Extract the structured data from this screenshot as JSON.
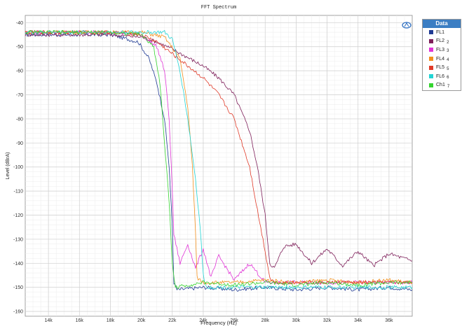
{
  "chart_data": {
    "type": "line",
    "title": "FFT Spectrum",
    "xlabel": "Frequency (Hz)",
    "ylabel": "Level (dBrA)",
    "xlim": [
      12500,
      37500
    ],
    "ylim": [
      -162,
      -37
    ],
    "x_ticks": [
      14000,
      16000,
      18000,
      20000,
      22000,
      24000,
      26000,
      28000,
      30000,
      32000,
      34000,
      36000
    ],
    "x_tick_labels": [
      "14k",
      "16k",
      "18k",
      "20k",
      "22k",
      "24k",
      "26k",
      "28k",
      "30k",
      "32k",
      "34k",
      "36k"
    ],
    "y_ticks": [
      -40,
      -50,
      -60,
      -70,
      -80,
      -90,
      -100,
      -110,
      -120,
      -130,
      -140,
      -150,
      -160
    ],
    "y_tick_labels": [
      "-40",
      "-50",
      "-60",
      "-70",
      "-80",
      "-90",
      "-100",
      "-110",
      "-120",
      "-130",
      "-140",
      "-150",
      "-160"
    ],
    "grid": true,
    "legend": {
      "title": "Data",
      "placement": "right"
    },
    "series": [
      {
        "name": "FL1",
        "number": "",
        "color": "#1f3a93",
        "x": [
          12500,
          15000,
          18000,
          19800,
          20500,
          21000,
          21500,
          21800,
          22000,
          22100,
          22300,
          24000,
          26000,
          28000,
          30000,
          32000,
          34000,
          36000,
          37500
        ],
        "y": [
          -45,
          -45,
          -45,
          -48,
          -55,
          -65,
          -80,
          -100,
          -125,
          -148,
          -151,
          -150,
          -151,
          -150,
          -151,
          -150,
          -151,
          -150,
          -151
        ]
      },
      {
        "name": "FL2",
        "number": "2",
        "color": "#7e1f5a",
        "x": [
          12500,
          15000,
          18000,
          20000,
          21000,
          22000,
          24000,
          25000,
          26000,
          27000,
          27500,
          28000,
          28300,
          28600,
          29200,
          30000,
          31000,
          32000,
          33000,
          34000,
          35000,
          36000,
          37500
        ],
        "y": [
          -45,
          -45,
          -45,
          -46,
          -48,
          -51,
          -58,
          -63,
          -70,
          -85,
          -100,
          -120,
          -140,
          -142,
          -133,
          -132,
          -140,
          -134,
          -141,
          -135,
          -141,
          -136,
          -139
        ]
      },
      {
        "name": "FL3",
        "number": "3",
        "color": "#e033d6",
        "x": [
          12500,
          15000,
          18000,
          20000,
          21000,
          21500,
          21800,
          22000,
          22100,
          22500,
          23000,
          23500,
          24000,
          24500,
          25000,
          26000,
          27000,
          28000,
          30000,
          32000,
          34000,
          36000,
          37500
        ],
        "y": [
          -44,
          -44,
          -44,
          -45,
          -50,
          -60,
          -80,
          -110,
          -128,
          -140,
          -132,
          -142,
          -134,
          -146,
          -137,
          -147,
          -140,
          -148,
          -148,
          -148,
          -148,
          -148,
          -148
        ]
      },
      {
        "name": "FL4",
        "number": "4",
        "color": "#f2901e",
        "x": [
          12500,
          15000,
          18000,
          20000,
          21500,
          22500,
          23000,
          23300,
          23500,
          23600,
          24000,
          26000,
          28000,
          30000,
          32000,
          34000,
          36000,
          37500
        ],
        "y": [
          -44,
          -44,
          -44,
          -44,
          -46,
          -55,
          -75,
          -100,
          -127,
          -146,
          -148,
          -148,
          -147,
          -148,
          -147,
          -148,
          -147,
          -148
        ]
      },
      {
        "name": "FL5",
        "number": "5",
        "color": "#e03a28",
        "x": [
          12500,
          15000,
          18000,
          20000,
          21000,
          22000,
          23000,
          24000,
          25000,
          26000,
          27000,
          27500,
          28000,
          28300,
          28600,
          30000,
          32000,
          34000,
          36000,
          37500
        ],
        "y": [
          -44,
          -44,
          -44,
          -45,
          -48,
          -53,
          -58,
          -63,
          -70,
          -80,
          -100,
          -118,
          -135,
          -146,
          -148,
          -148,
          -148,
          -148,
          -148,
          -148
        ]
      },
      {
        "name": "FL6",
        "number": "6",
        "color": "#22d4d4",
        "x": [
          12500,
          15000,
          18000,
          20000,
          21500,
          22000,
          22500,
          23000,
          23500,
          23800,
          24000,
          24200,
          26000,
          28000,
          30000,
          32000,
          34000,
          36000,
          37500
        ],
        "y": [
          -44,
          -44,
          -44,
          -44,
          -44,
          -47,
          -60,
          -80,
          -105,
          -125,
          -145,
          -150,
          -150,
          -150,
          -150,
          -150,
          -150,
          -150,
          -150
        ]
      },
      {
        "name": "Ch1",
        "number": "7",
        "color": "#35d430",
        "x": [
          12500,
          15000,
          18000,
          20000,
          20800,
          21200,
          21500,
          21800,
          22000,
          22200,
          24000,
          26000,
          28000,
          30000,
          32000,
          34000,
          36000,
          37500
        ],
        "y": [
          -44,
          -44,
          -44,
          -45,
          -50,
          -65,
          -90,
          -115,
          -140,
          -150,
          -148,
          -149,
          -148,
          -149,
          -148,
          -149,
          -148,
          -148
        ]
      }
    ]
  }
}
